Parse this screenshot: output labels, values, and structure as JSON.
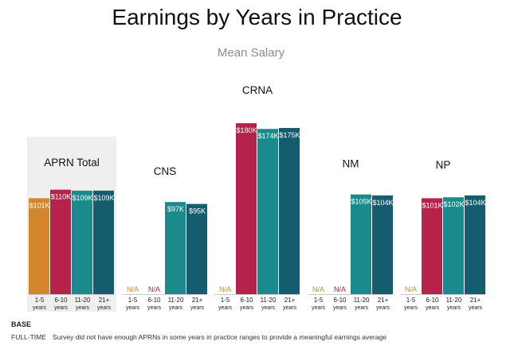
{
  "title": "Earnings by Years in Practice",
  "subtitle": "Mean Salary",
  "base_label": "BASE",
  "footnote": {
    "tag": "FULL-TIME",
    "text": "Survey did not have enough APRNs in some years in practice ranges to provide a meaningful earnings average"
  },
  "colors": {
    "1-5": "#d4872a",
    "6-10": "#b5234a",
    "11-20": "#1a8a8c",
    "21+": "#155c6e",
    "na_text": "#c98a2e",
    "na_text_alt": "#a3214a",
    "highlight_bg": "#efefef"
  },
  "chart_data": {
    "type": "bar",
    "ylim": [
      0,
      190
    ],
    "groups": [
      {
        "name": "APRN Total",
        "highlighted": true,
        "bars": [
          {
            "category": "1-5",
            "sublabel": "years",
            "value": 101,
            "label": "$101K"
          },
          {
            "category": "6-10",
            "sublabel": "years",
            "value": 110,
            "label": "$110K"
          },
          {
            "category": "11-20",
            "sublabel": "years",
            "value": 109,
            "label": "$109K"
          },
          {
            "category": "21+",
            "sublabel": "years",
            "value": 109,
            "label": "$109K"
          }
        ]
      },
      {
        "name": "CNS",
        "highlighted": false,
        "bars": [
          {
            "category": "1-5",
            "sublabel": "years",
            "value": null,
            "label": "N/A"
          },
          {
            "category": "6-10",
            "sublabel": "years",
            "value": null,
            "label": "N/A"
          },
          {
            "category": "11-20",
            "sublabel": "years",
            "value": 97,
            "label": "$97K"
          },
          {
            "category": "21+",
            "sublabel": "years",
            "value": 95,
            "label": "$95K"
          }
        ]
      },
      {
        "name": "CRNA",
        "highlighted": false,
        "bars": [
          {
            "category": "1-5",
            "sublabel": "years",
            "value": null,
            "label": "N/A"
          },
          {
            "category": "6-10",
            "sublabel": "years",
            "value": 180,
            "label": "$180K"
          },
          {
            "category": "11-20",
            "sublabel": "years",
            "value": 174,
            "label": "$174K"
          },
          {
            "category": "21+",
            "sublabel": "years",
            "value": 175,
            "label": "$175K"
          }
        ]
      },
      {
        "name": "NM",
        "highlighted": false,
        "bars": [
          {
            "category": "1-5",
            "sublabel": "years",
            "value": null,
            "label": "N/A"
          },
          {
            "category": "6-10",
            "sublabel": "years",
            "value": null,
            "label": "N/A"
          },
          {
            "category": "11-20",
            "sublabel": "years",
            "value": 105,
            "label": "$105K"
          },
          {
            "category": "21+",
            "sublabel": "years",
            "value": 104,
            "label": "$104K"
          }
        ]
      },
      {
        "name": "NP",
        "highlighted": false,
        "bars": [
          {
            "category": "1-5",
            "sublabel": "years",
            "value": null,
            "label": "N/A"
          },
          {
            "category": "6-10",
            "sublabel": "years",
            "value": 101,
            "label": "$101K"
          },
          {
            "category": "11-20",
            "sublabel": "years",
            "value": 102,
            "label": "$102K"
          },
          {
            "category": "21+",
            "sublabel": "years",
            "value": 104,
            "label": "$104K"
          }
        ]
      }
    ]
  }
}
